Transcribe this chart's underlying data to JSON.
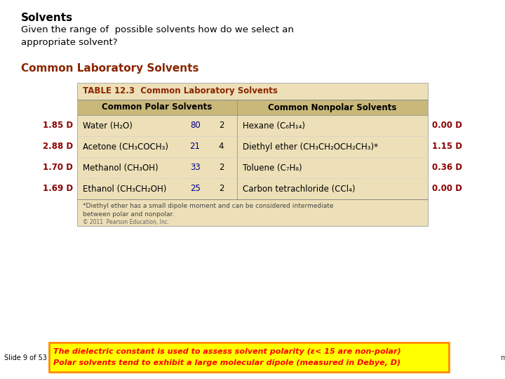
{
  "title": "Solvents",
  "subtitle": "Given the range of  possible solvents how do we select an\nappropriate solvent?",
  "section_title": "Common Laboratory Solvents",
  "table_title": "TABLE 12.3  Common Laboratory Solvents",
  "col_header_left": "Common Polar Solvents",
  "col_header_right": "Common Nonpolar Solvents",
  "polar_rows": [
    {
      "dipole": "1.85 D",
      "name": "Water (H₂O)",
      "epsilon": "80",
      "charge": "2"
    },
    {
      "dipole": "2.88 D",
      "name": "Acetone (CH₃COCH₃)",
      "epsilon": "21",
      "charge": "4"
    },
    {
      "dipole": "1.70 D",
      "name": "Methanol (CH₃OH)",
      "epsilon": "33",
      "charge": "2"
    },
    {
      "dipole": "1.69 D",
      "name": "Ethanol (CH₃CH₂OH)",
      "epsilon": "25",
      "charge": "2"
    }
  ],
  "nonpolar_rows": [
    {
      "name": "Hexane (C₆H₁₄)",
      "dipole": "0.00 D"
    },
    {
      "name": "Diethyl ether (CH₃CH₂OCH₂CH₃)*",
      "dipole": "1.15 D"
    },
    {
      "name": "Toluene (C₇H₈)",
      "dipole": "0.36 D"
    },
    {
      "name": "Carbon tetrachloride (CCl₄)",
      "dipole": "0.00 D"
    }
  ],
  "footnote": "*Diethyl ether has a small dipole moment and can be considered intermediate\nbetween polar and nonpolar.",
  "copyright": "© 2011  Pearson Education, Inc.",
  "bottom_box_line1": "The dielectric constant is used to assess solvent polarity (ε< 15 are non-polar)",
  "bottom_box_line2": "Polar solvents tend to exhibit a large molecular dipole (measured in Debye, D)",
  "slide_label": "Slide 9 of 53",
  "right_cutoff": "m and",
  "bg_color": "#ffffff",
  "table_header_bg": "#ede0b8",
  "table_col_header_bg": "#c8b87a",
  "bottom_box_bg": "#ffff00",
  "bottom_box_border": "#ff8c00",
  "title_color": "#000000",
  "section_title_color": "#8b2500",
  "table_title_color": "#8b2500",
  "dipole_color": "#8b0000",
  "epsilon_color": "#00008b",
  "bottom_text_color": "#ff0000",
  "slide_label_color": "#000000"
}
